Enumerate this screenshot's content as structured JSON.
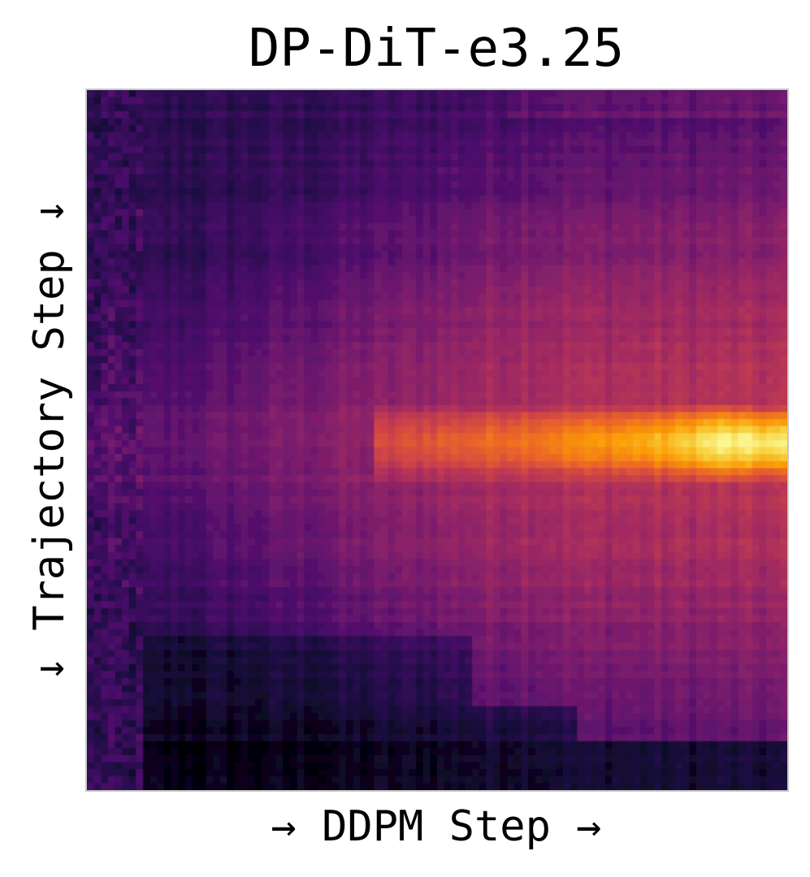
{
  "chart_data": {
    "type": "heatmap",
    "title": "DP-DiT-e3.25",
    "xlabel": "→ DDPM Step →",
    "ylabel": "↓ Trajectory Step ↓",
    "colormap": "inferno",
    "colors": [
      "#000004",
      "#1b0c41",
      "#4a0c6b",
      "#781c6d",
      "#a52c60",
      "#cf4446",
      "#ed6925",
      "#fb9b06",
      "#f7d13d",
      "#fcffa4"
    ],
    "grid": false,
    "xticks": [],
    "yticks": [],
    "n_cols": 100,
    "n_rows": 100,
    "band": {
      "center_row": 50,
      "peak_intensity": 0.93,
      "onset_col": 48,
      "peak_col": 90,
      "width_rows": 4
    }
  }
}
